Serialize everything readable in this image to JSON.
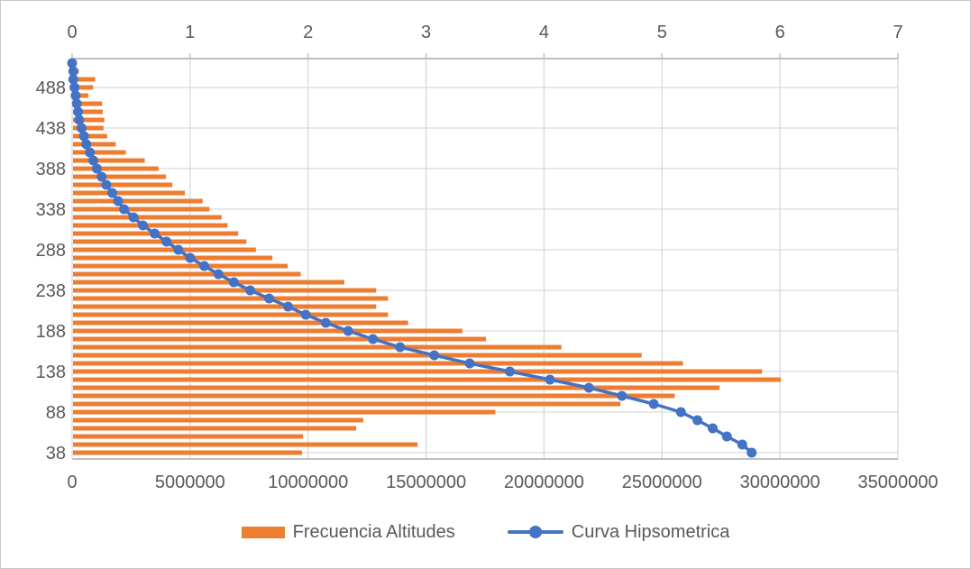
{
  "legend": {
    "items": [
      {
        "label": "Frecuencia Altitudes",
        "color": "#ED7D31",
        "marker": "bar"
      },
      {
        "label": "Curva Hipsometrica",
        "color": "#4472C4",
        "marker": "line-dot"
      }
    ]
  },
  "chart_data": {
    "type": "bar",
    "orientation": "horizontal",
    "title": "",
    "grid": true,
    "legend_position": "bottom",
    "categories": [
      518,
      508,
      498,
      488,
      478,
      468,
      458,
      448,
      438,
      428,
      418,
      408,
      398,
      388,
      378,
      368,
      358,
      348,
      338,
      328,
      318,
      308,
      298,
      288,
      278,
      268,
      258,
      248,
      238,
      228,
      218,
      208,
      198,
      188,
      178,
      168,
      158,
      148,
      138,
      128,
      118,
      108,
      98,
      88,
      78,
      68,
      58,
      48,
      38
    ],
    "category_axis": {
      "side": "left",
      "tick_labels": [
        "488",
        "438",
        "388",
        "338",
        "288",
        "238",
        "188",
        "138",
        "88",
        "38"
      ],
      "tick_values": [
        488,
        438,
        388,
        338,
        288,
        238,
        188,
        138,
        88,
        38
      ],
      "tick_step": 50
    },
    "series": [
      {
        "name": "Frecuencia Altitudes",
        "type": "bar",
        "color": "#ED7D31",
        "value_axis": "bottom",
        "values": [
          50000,
          250000,
          940000,
          850000,
          650000,
          1230000,
          1260000,
          1330000,
          1290000,
          1450000,
          1810000,
          2240000,
          3040000,
          3620000,
          3940000,
          4210000,
          4740000,
          5490000,
          5780000,
          6300000,
          6550000,
          7000000,
          7350000,
          7750000,
          8450000,
          9100000,
          9650000,
          11500000,
          12850000,
          13350000,
          12850000,
          13350000,
          14200000,
          16500000,
          17500000,
          20700000,
          24100000,
          25850000,
          29200000,
          30000000,
          27400000,
          25500000,
          23200000,
          17900000,
          12300000,
          12000000,
          9750000,
          14600000,
          9700000
        ]
      },
      {
        "name": "Curva Hipsometrica",
        "type": "line",
        "color": "#4472C4",
        "marker": "circle",
        "value_axis": "top",
        "values": [
          0.0,
          0.01,
          0.01,
          0.02,
          0.03,
          0.04,
          0.05,
          0.06,
          0.08,
          0.1,
          0.12,
          0.15,
          0.18,
          0.21,
          0.25,
          0.29,
          0.34,
          0.39,
          0.44,
          0.52,
          0.6,
          0.7,
          0.8,
          0.9,
          1.0,
          1.12,
          1.24,
          1.37,
          1.51,
          1.67,
          1.83,
          1.98,
          2.15,
          2.34,
          2.55,
          2.78,
          3.07,
          3.37,
          3.71,
          4.05,
          4.38,
          4.66,
          4.93,
          5.16,
          5.3,
          5.43,
          5.55,
          5.68,
          5.76
        ]
      }
    ],
    "top_axis": {
      "min": 0,
      "max": 7,
      "tick_labels": [
        "0",
        "1",
        "2",
        "3",
        "4",
        "5",
        "6",
        "7"
      ]
    },
    "bottom_axis": {
      "min": 0,
      "max": 35000000,
      "tick_labels": [
        "0",
        "5000000",
        "10000000",
        "15000000",
        "20000000",
        "25000000",
        "30000000",
        "35000000"
      ]
    },
    "colors": {
      "grid": "#D9D9D9",
      "axis": "#BFBFBF",
      "text": "#595959"
    }
  }
}
